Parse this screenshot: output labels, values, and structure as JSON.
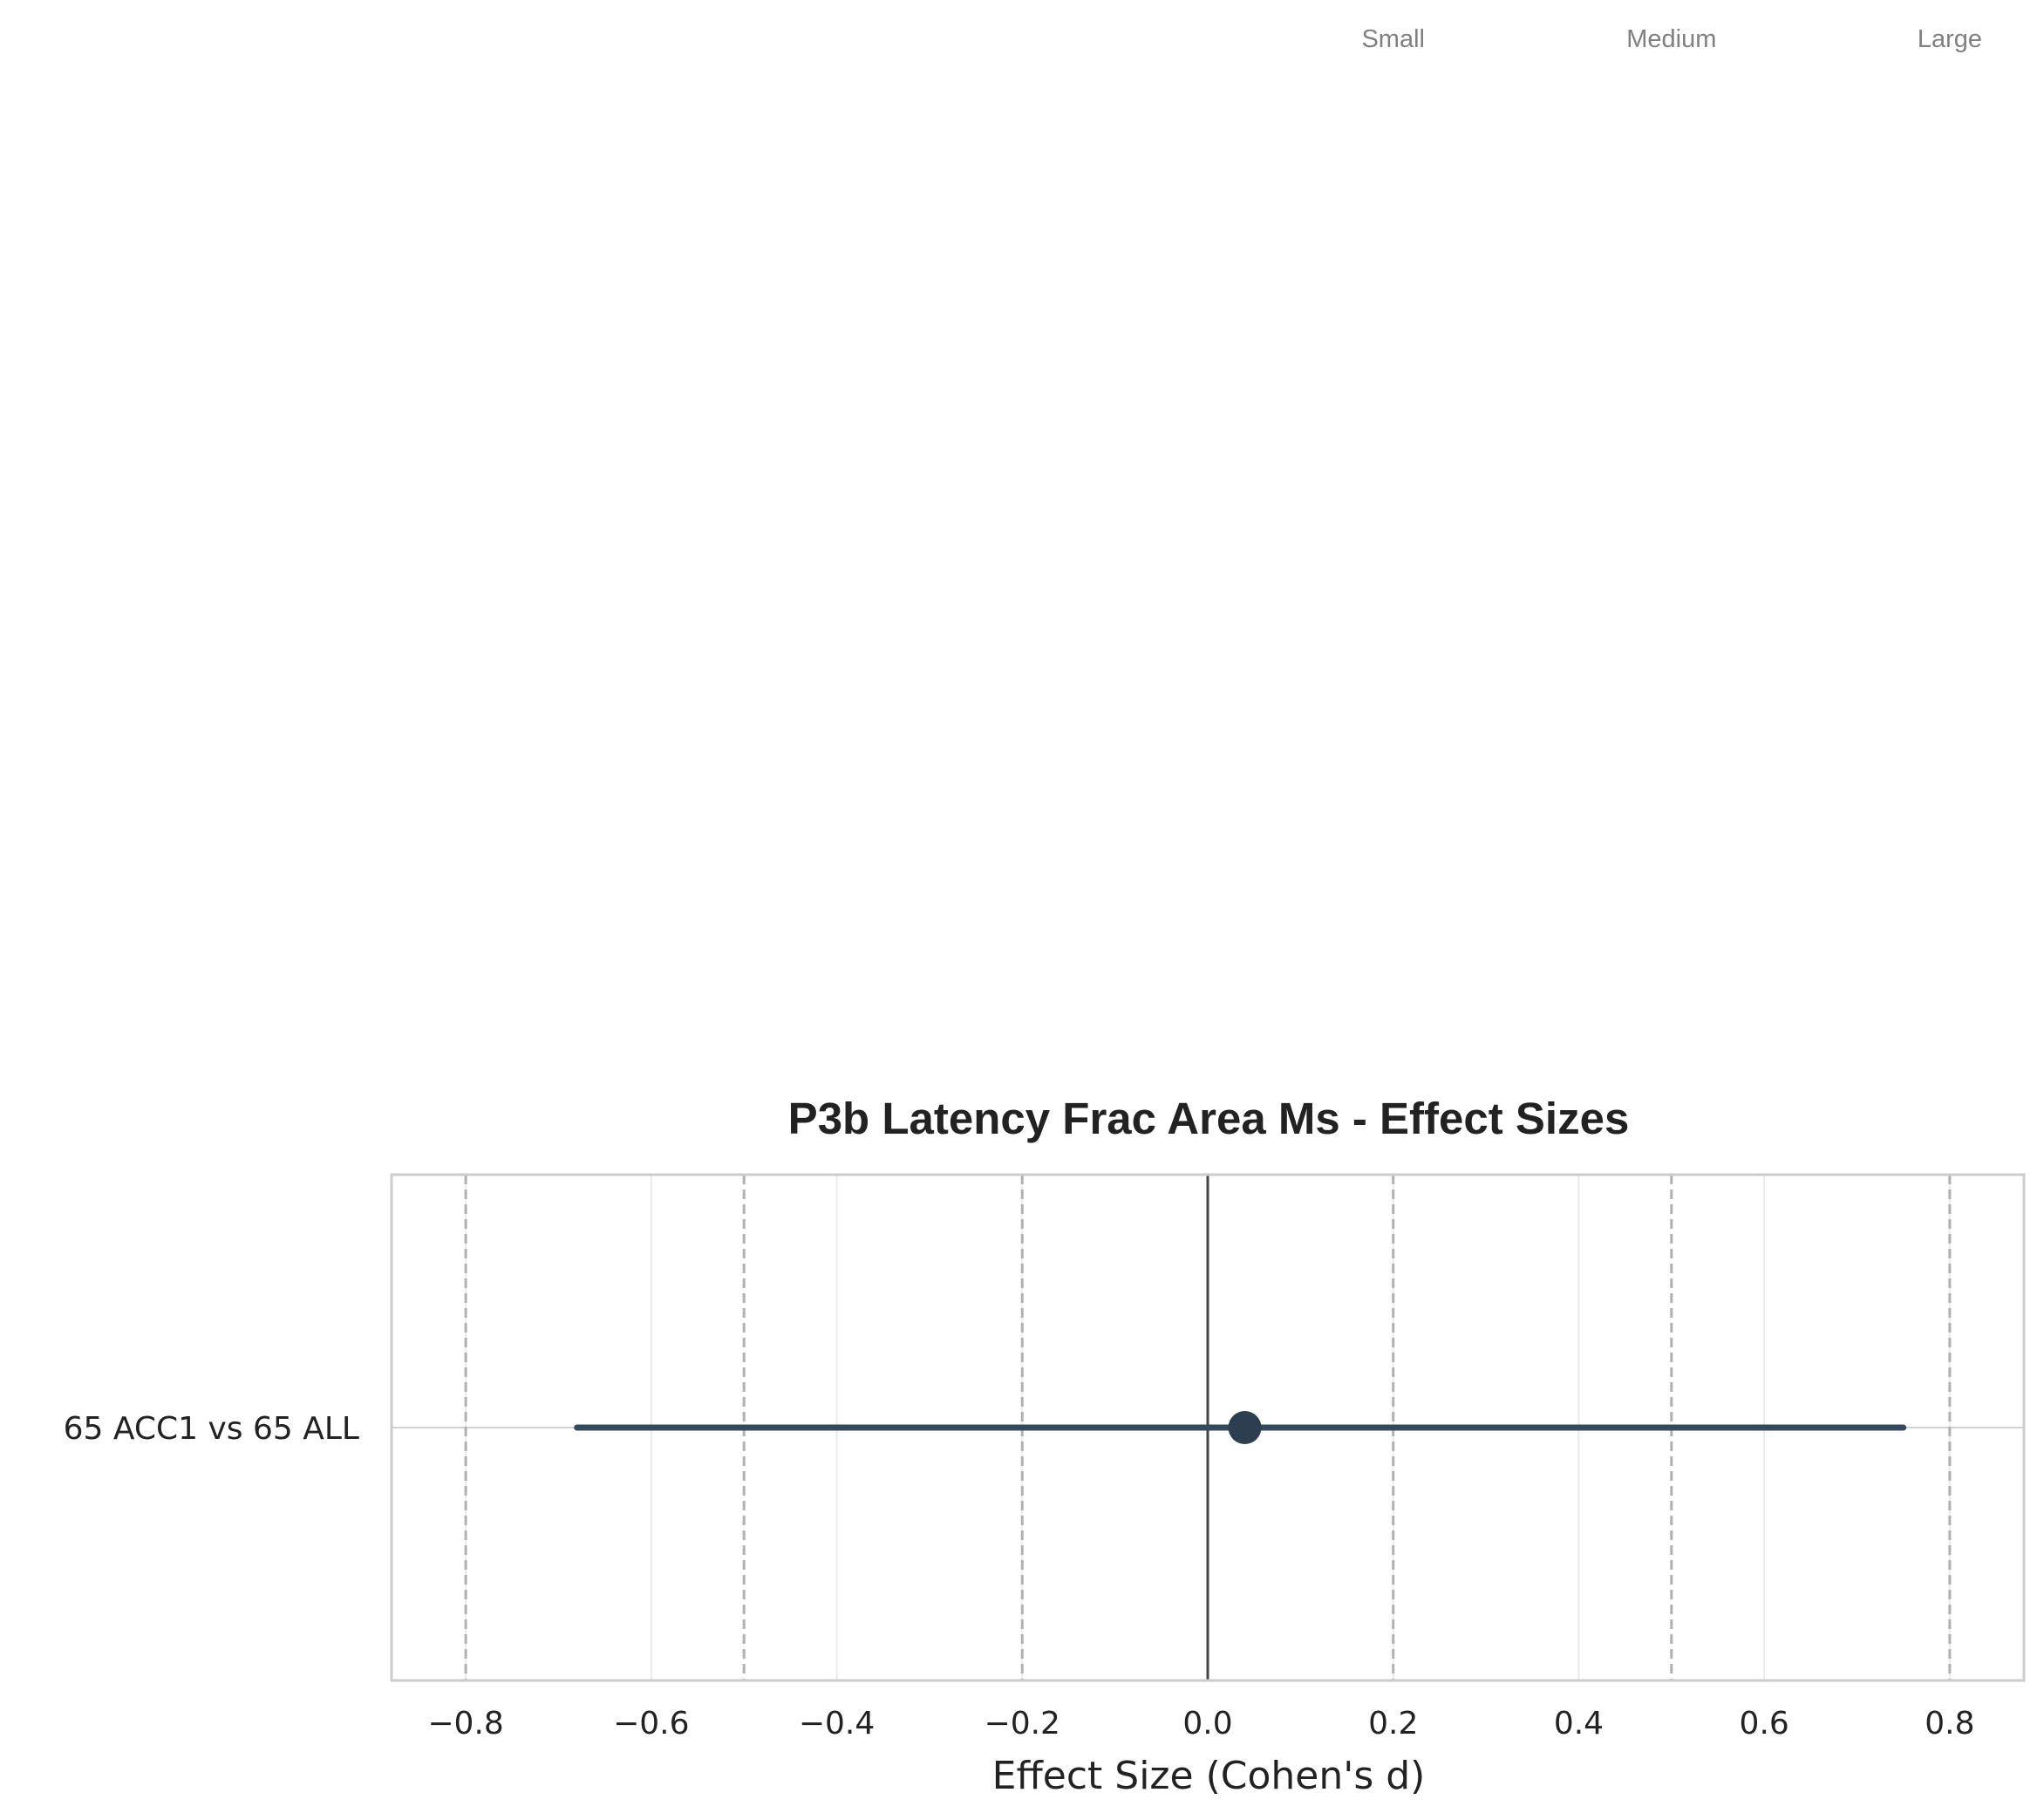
{
  "chart_data": {
    "type": "forest",
    "title": "P3b Latency Frac Area Ms - Effect Sizes",
    "xlabel": "Effect Size (Cohen's d)",
    "ylabel": "",
    "xlim": [
      -0.88,
      0.88
    ],
    "xticks": [
      -0.8,
      -0.6,
      -0.4,
      -0.2,
      0.0,
      0.2,
      0.4,
      0.6,
      0.8
    ],
    "xtick_labels": [
      "−0.8",
      "−0.6",
      "−0.4",
      "−0.2",
      "0.0",
      "0.2",
      "0.4",
      "0.6",
      "0.8"
    ],
    "grid": true,
    "reference_line": 0.0,
    "thresholds": [
      {
        "value": 0.2,
        "label": "Small"
      },
      {
        "value": 0.5,
        "label": "Medium"
      },
      {
        "value": 0.8,
        "label": "Large"
      }
    ],
    "mirror_thresholds": [
      -0.2,
      -0.5,
      -0.8
    ],
    "comparisons": [
      {
        "label": "65 ACC1 vs 65 ALL",
        "d": 0.04,
        "ci_low": -0.68,
        "ci_high": 0.75
      }
    ],
    "colors": {
      "point": "#2c3e50",
      "ci": "#34495e",
      "threshold": "#b0b0b0",
      "grid": "#ebebeb",
      "spine": "#cccccc",
      "zero": "#444444"
    }
  }
}
